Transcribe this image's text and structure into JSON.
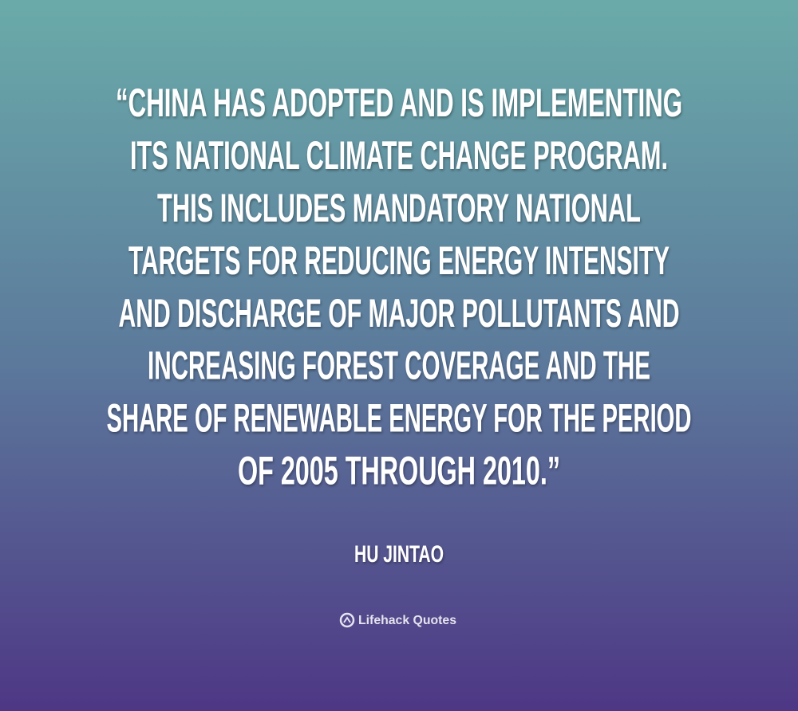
{
  "quote": {
    "lines": [
      "“CHINA HAS ADOPTED AND IS IMPLEMENTING",
      "ITS NATIONAL CLIMATE CHANGE PROGRAM.",
      "THIS INCLUDES MANDATORY NATIONAL",
      "TARGETS FOR REDUCING ENERGY INTENSITY",
      "AND DISCHARGE OF MAJOR POLLUTANTS AND",
      "INCREASING FOREST COVERAGE AND THE",
      "SHARE OF RENEWABLE ENERGY FOR THE PERIOD",
      "OF 2005 THROUGH 2010.”"
    ],
    "author": "HU JINTAO"
  },
  "brand": "Lifehack Quotes"
}
